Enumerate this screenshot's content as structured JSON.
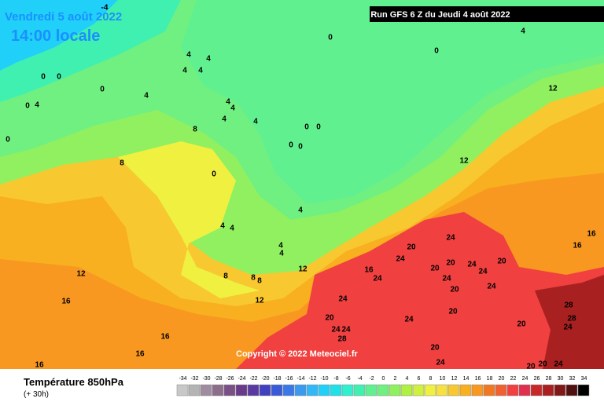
{
  "header": {
    "date": "Vendredi 5 août 2022",
    "time": "14:00 locale"
  },
  "run": "Run GFS 6 Z du Jeudi 4 août 2022",
  "copyright": "Copyright © 2022 Meteociel.fr",
  "legend": {
    "title": "Température 850hPa",
    "subtitle": "(+ 30h)",
    "values": [
      -34,
      -32,
      -30,
      -28,
      -26,
      -24,
      -22,
      -20,
      -18,
      -16,
      -14,
      -12,
      -10,
      -8,
      -6,
      -4,
      -2,
      0,
      2,
      4,
      6,
      8,
      10,
      12,
      14,
      16,
      18,
      20,
      22,
      24,
      26,
      28,
      30,
      32,
      34
    ],
    "colors": [
      "#c8c8c8",
      "#b4b4b4",
      "#a08ca0",
      "#8c6e8c",
      "#7a4f86",
      "#6a3a8a",
      "#5a3aa0",
      "#4040c0",
      "#3a5ad8",
      "#3a78e8",
      "#3a9af0",
      "#30b8f8",
      "#20d0f8",
      "#20e0e8",
      "#30f0d0",
      "#40f0b0",
      "#60f090",
      "#70f080",
      "#90f060",
      "#b0f040",
      "#d0f040",
      "#f0f040",
      "#f8e040",
      "#f8c830",
      "#f8b020",
      "#f89820",
      "#f07820",
      "#f06030",
      "#f04040",
      "#e03050",
      "#c82828",
      "#a82020",
      "#801818",
      "#501010",
      "#000000"
    ]
  },
  "contour_labels": [
    -4,
    0,
    4,
    0,
    4,
    4,
    4,
    4,
    0,
    0,
    0,
    4,
    4,
    0,
    4,
    4,
    4,
    4,
    0,
    0,
    0,
    0,
    0,
    8,
    8,
    0,
    4,
    4,
    4,
    4,
    4,
    8,
    8,
    8,
    12,
    12,
    12,
    16,
    16,
    16,
    16,
    16,
    12,
    12,
    16,
    16,
    20,
    24,
    24,
    24,
    20,
    20,
    24,
    24,
    20,
    24,
    20,
    24,
    24,
    20,
    24,
    24,
    28,
    24,
    20,
    20,
    28,
    28,
    24,
    20,
    24,
    20,
    20,
    24
  ]
}
